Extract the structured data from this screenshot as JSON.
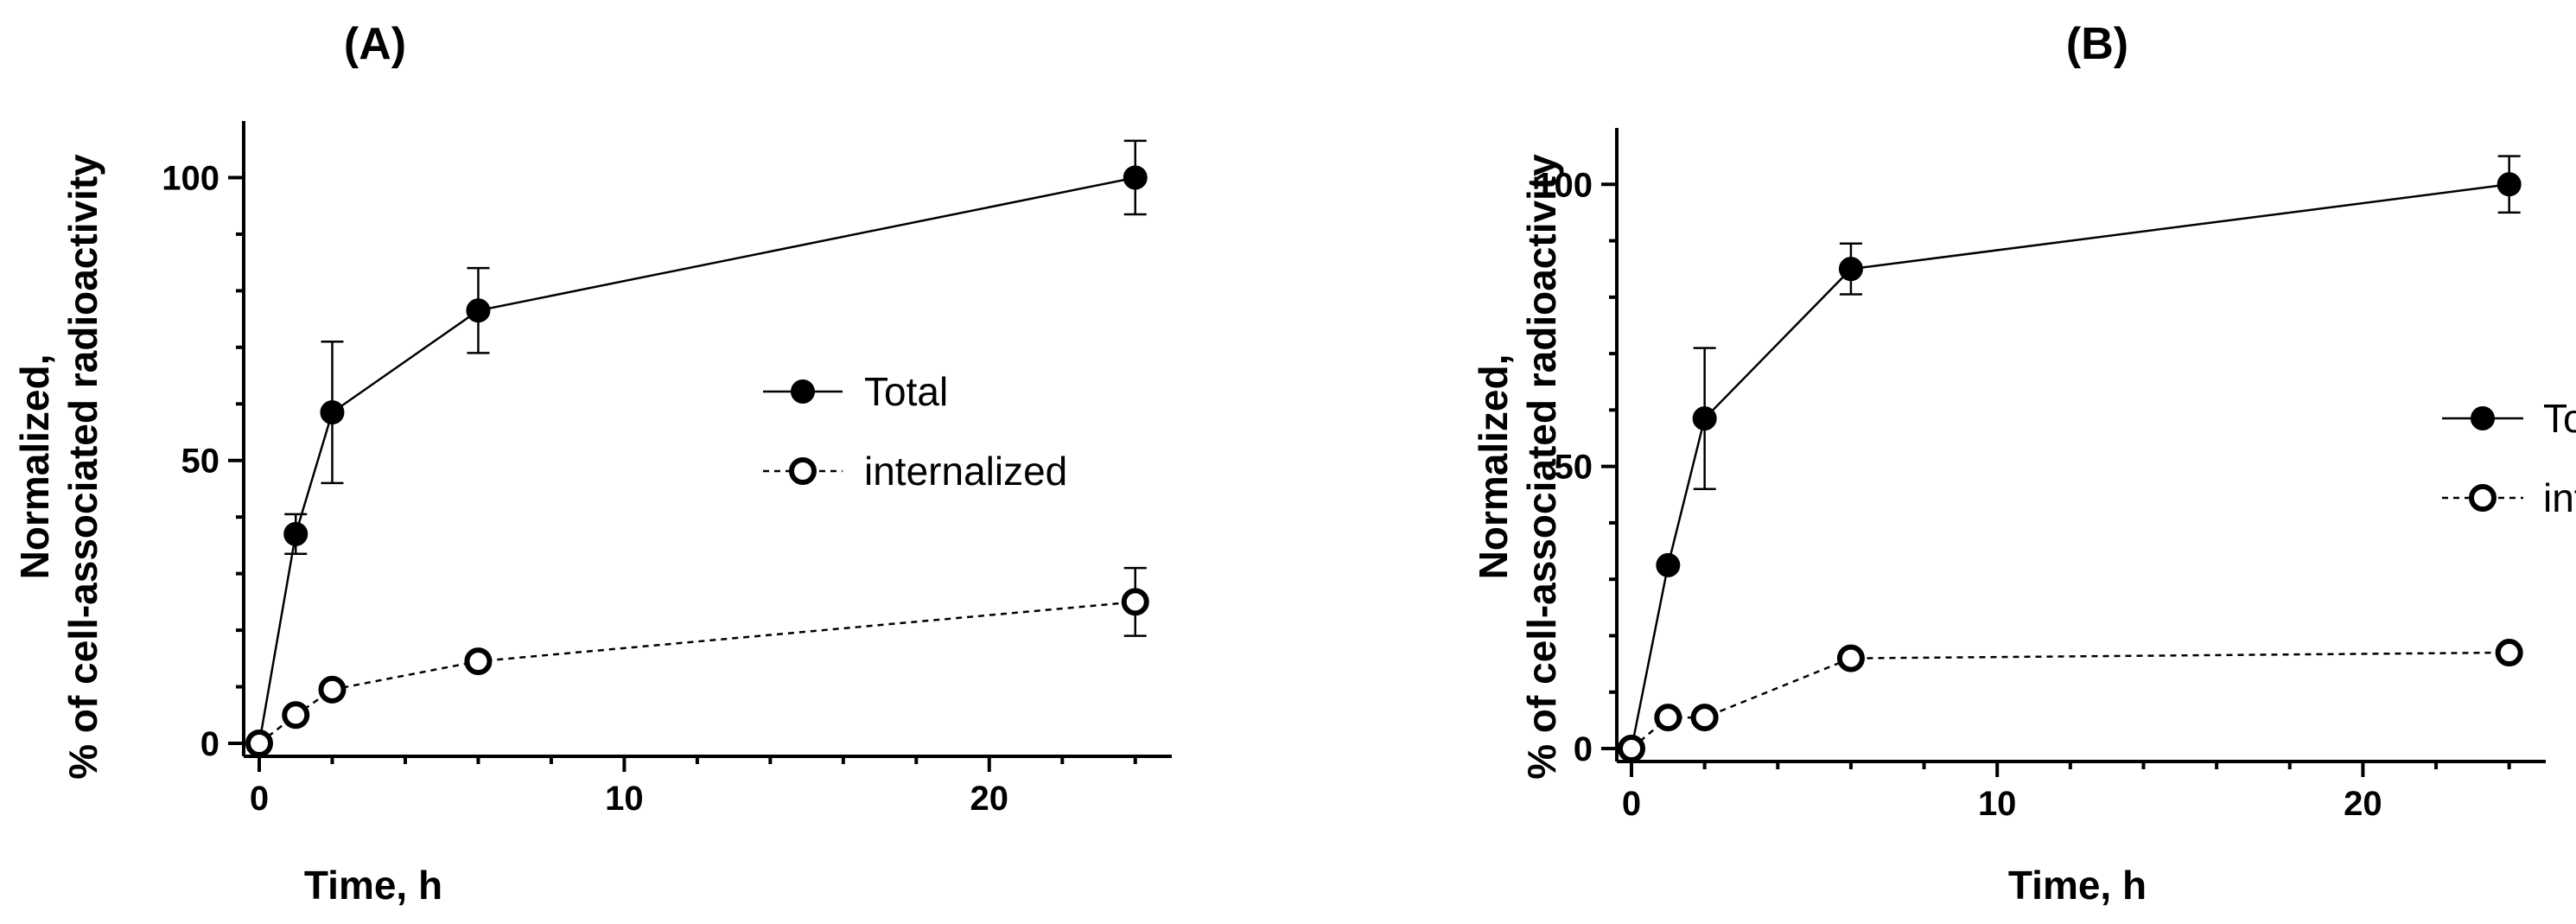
{
  "chart_data": [
    {
      "type": "line",
      "title": "(A)",
      "xlabel": "Time, h",
      "ylabel_line1": "Normalized,",
      "ylabel_line2": "% of cell-associated radioactivity",
      "xlim": [
        0,
        25
      ],
      "ylim": [
        0,
        110
      ],
      "xticks": [
        0,
        10,
        20
      ],
      "yticks": [
        0,
        50,
        100
      ],
      "legend_position": "center-right",
      "series": [
        {
          "name": "Total",
          "marker": "filled-circle",
          "line": "solid",
          "x": [
            0,
            1,
            2,
            6,
            24
          ],
          "y": [
            0,
            37,
            58.5,
            76.5,
            100
          ],
          "err": [
            0,
            3.5,
            12.5,
            7.5,
            6.5
          ]
        },
        {
          "name": "internalized",
          "marker": "open-circle",
          "line": "dashed",
          "x": [
            0,
            1,
            2,
            6,
            24
          ],
          "y": [
            0,
            5,
            9.5,
            14.5,
            25
          ],
          "err": [
            0,
            0,
            0,
            0,
            6
          ]
        }
      ]
    },
    {
      "type": "line",
      "title": "(B)",
      "xlabel": "Time, h",
      "ylabel_line1": "Normalized,",
      "ylabel_line2": "% of cell-associated radioactivity",
      "xlim": [
        0,
        25
      ],
      "ylim": [
        0,
        110
      ],
      "xticks": [
        0,
        10,
        20
      ],
      "yticks": [
        0,
        50,
        100
      ],
      "legend_position": "center-right",
      "series": [
        {
          "name": "Total",
          "marker": "filled-circle",
          "line": "solid",
          "x": [
            0,
            1,
            2,
            6,
            24
          ],
          "y": [
            0,
            32.5,
            58.5,
            85,
            100
          ],
          "err": [
            0,
            0,
            12.5,
            4.5,
            5
          ]
        },
        {
          "name": "internalized",
          "marker": "open-circle",
          "line": "dashed",
          "x": [
            0,
            1,
            2,
            6,
            24
          ],
          "y": [
            0,
            5.5,
            5.5,
            16,
            17
          ],
          "err": [
            0,
            0,
            0,
            0,
            0
          ]
        }
      ]
    }
  ]
}
